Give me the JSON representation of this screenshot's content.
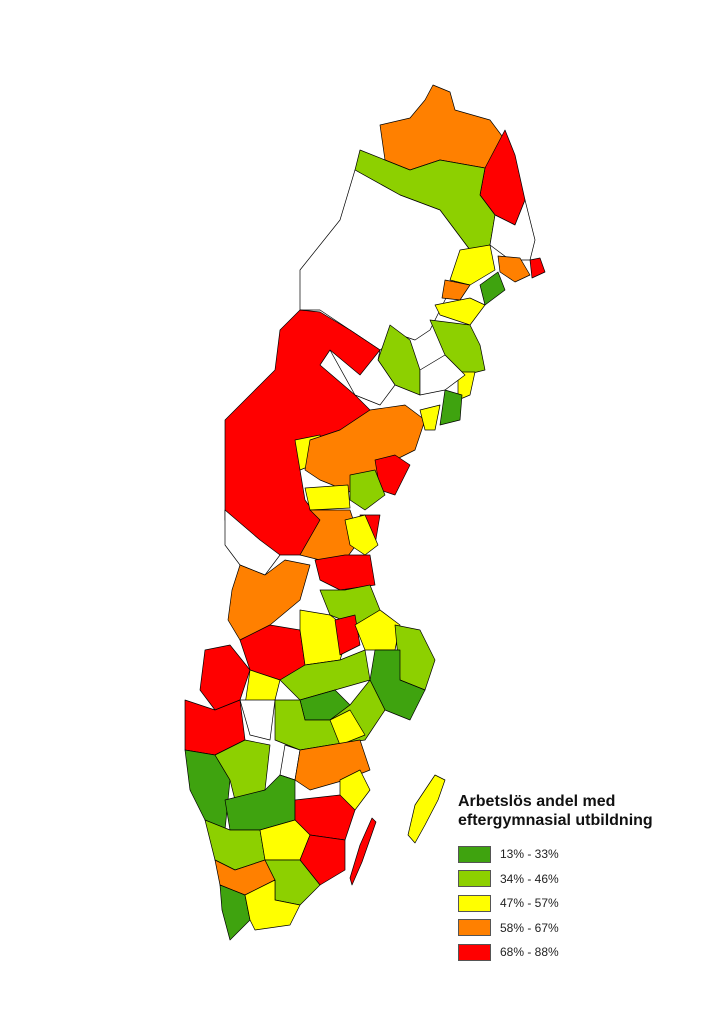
{
  "legend": {
    "title_line1": "Arbetslös andel med",
    "title_line2": "eftergymnasial utbildning",
    "classes": [
      {
        "label": "13% - 33%",
        "color": "#3fa30f"
      },
      {
        "label": "34% - 46%",
        "color": "#8dd000"
      },
      {
        "label": "47% - 57%",
        "color": "#ffff00"
      },
      {
        "label": "58% - 67%",
        "color": "#ff8000"
      },
      {
        "label": "68% - 88%",
        "color": "#ff0000"
      }
    ],
    "no_data_color": "#ffffff"
  }
}
